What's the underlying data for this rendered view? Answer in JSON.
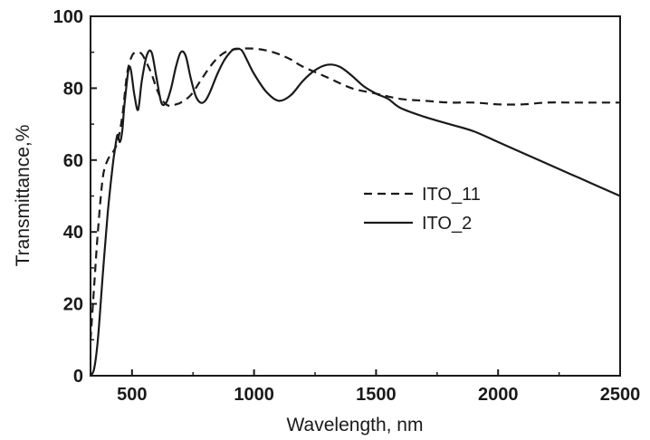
{
  "chart_data": {
    "type": "line",
    "title": "",
    "xlabel": "Wavelength, nm",
    "ylabel": "Transmittance,%",
    "xlim": [
      330,
      2500
    ],
    "ylim": [
      0,
      100
    ],
    "x_ticks": [
      500,
      1000,
      1500,
      2000,
      2500
    ],
    "y_ticks": [
      0,
      20,
      40,
      60,
      80,
      100
    ],
    "grid": false,
    "legend_position": "center-right",
    "colors": {
      "line": "#1a1a1a",
      "axis": "#1a1a1a"
    },
    "series": [
      {
        "name": "ITO_11",
        "style": "dashed",
        "x": [
          330,
          345,
          360,
          380,
          400,
          420,
          440,
          460,
          480,
          500,
          520,
          540,
          560,
          580,
          600,
          620,
          640,
          660,
          680,
          700,
          740,
          780,
          820,
          860,
          900,
          950,
          1000,
          1050,
          1100,
          1150,
          1200,
          1300,
          1400,
          1500,
          1600,
          1700,
          1800,
          1900,
          2000,
          2100,
          2200,
          2300,
          2400,
          2500
        ],
        "y": [
          10,
          25,
          40,
          55,
          60,
          62,
          65,
          72,
          84,
          89,
          90,
          89.5,
          87,
          84,
          80,
          77,
          75.5,
          75,
          75.5,
          76,
          78,
          82,
          86,
          89,
          90.5,
          91,
          91,
          90.5,
          89.5,
          88,
          86,
          83,
          80,
          78.5,
          77,
          76.5,
          76,
          76,
          75.5,
          75.5,
          76,
          76,
          76,
          76
        ]
      },
      {
        "name": "ITO_2",
        "style": "solid",
        "x": [
          330,
          345,
          360,
          380,
          400,
          420,
          430,
          440,
          450,
          460,
          470,
          490,
          510,
          525,
          540,
          560,
          580,
          600,
          620,
          640,
          660,
          680,
          700,
          720,
          740,
          760,
          780,
          800,
          820,
          850,
          880,
          910,
          930,
          950,
          970,
          1000,
          1050,
          1100,
          1150,
          1200,
          1250,
          1300,
          1350,
          1400,
          1450,
          1500,
          1550,
          1600,
          1700,
          1800,
          1900,
          2000,
          2100,
          2200,
          2300,
          2400,
          2500
        ],
        "y": [
          0,
          2,
          10,
          28,
          45,
          58,
          63,
          67,
          65,
          68,
          76,
          86,
          78,
          74,
          82,
          89,
          90,
          83,
          76,
          76,
          80,
          86,
          90,
          89,
          83,
          78,
          76,
          76.5,
          79,
          84,
          88,
          90.5,
          91,
          90.5,
          88,
          84,
          79,
          76.5,
          78,
          82,
          85,
          86.5,
          86,
          83.5,
          80.5,
          78.5,
          77,
          74.5,
          72,
          70,
          68,
          65,
          62,
          59,
          56,
          53,
          50
        ]
      }
    ]
  }
}
